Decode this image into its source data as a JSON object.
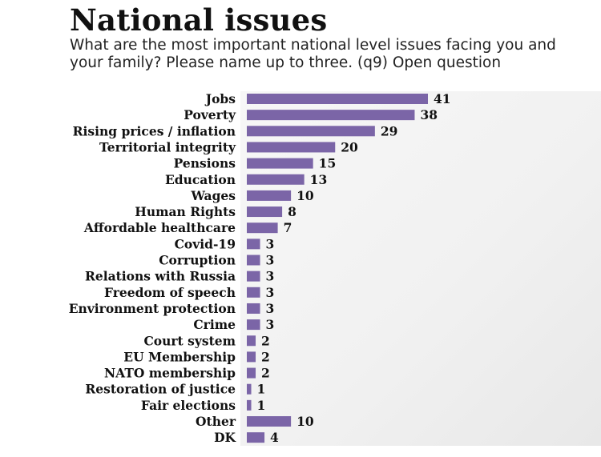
{
  "header": {
    "title": "National issues",
    "subtitle": "What are the most important national level issues facing you and your family? Please name up to three. (q9) Open question"
  },
  "colors": {
    "bar": "#7b65a7",
    "background_panel": "#f1f1f1"
  },
  "chart_data": {
    "type": "bar",
    "orientation": "horizontal",
    "title": "National issues",
    "subtitle": "What are the most important national level issues facing you and your family? Please name up to three. (q9) Open question",
    "xlabel": "",
    "ylabel": "",
    "xlim": [
      0,
      41
    ],
    "grid": false,
    "legend": "none",
    "categories": [
      "Jobs",
      "Poverty",
      "Rising prices / inflation",
      "Territorial integrity",
      "Pensions",
      "Education",
      "Wages",
      "Human Rights",
      "Affordable healthcare",
      "Covid-19",
      "Corruption",
      "Relations with Russia",
      "Freedom of speech",
      "Environment protection",
      "Crime",
      "Court system",
      "EU Membership",
      "NATO membership",
      "Restoration of justice",
      "Fair elections",
      "Other",
      "DK"
    ],
    "values": [
      41,
      38,
      29,
      20,
      15,
      13,
      10,
      8,
      7,
      3,
      3,
      3,
      3,
      3,
      3,
      2,
      2,
      2,
      1,
      1,
      10,
      4
    ]
  }
}
